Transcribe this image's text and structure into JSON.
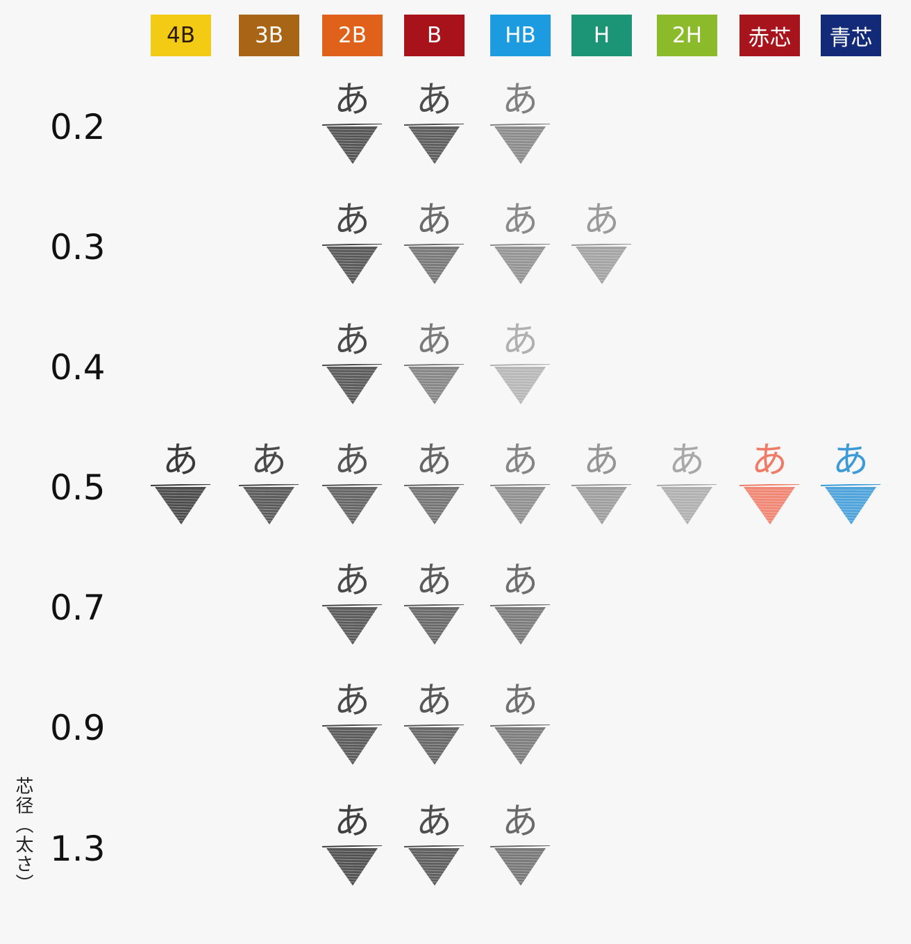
{
  "grades": [
    {
      "label": "4B",
      "color": "#f3cb14",
      "text_color": "#2a1a0a"
    },
    {
      "label": "3B",
      "color": "#a86515",
      "text_color": "#ffffff"
    },
    {
      "label": "2B",
      "color": "#e0621a",
      "text_color": "#ffffff"
    },
    {
      "label": "B",
      "color": "#a8121a",
      "text_color": "#ffffff"
    },
    {
      "label": "HB",
      "color": "#1d9be0",
      "text_color": "#ffffff"
    },
    {
      "label": "H",
      "color": "#1c9577",
      "text_color": "#ffffff"
    },
    {
      "label": "2H",
      "color": "#8bbb2b",
      "text_color": "#ffffff"
    },
    {
      "label": "赤芯",
      "color": "#a8141c",
      "text_color": "#ffffff"
    },
    {
      "label": "青芯",
      "color": "#122a78",
      "text_color": "#ffffff"
    }
  ],
  "axis_label": "芯径（太さ）",
  "sample_char": "あ",
  "rows": [
    {
      "label": "0.2",
      "samples": [
        {
          "grade": "2B",
          "color": "#444444"
        },
        {
          "grade": "B",
          "color": "#4d4d4d"
        },
        {
          "grade": "HB",
          "color": "#808080"
        }
      ]
    },
    {
      "label": "0.3",
      "samples": [
        {
          "grade": "2B",
          "color": "#484848"
        },
        {
          "grade": "B",
          "color": "#6a6a6a"
        },
        {
          "grade": "HB",
          "color": "#8a8a8a"
        },
        {
          "grade": "H",
          "color": "#9a9a9a"
        }
      ]
    },
    {
      "label": "0.4",
      "samples": [
        {
          "grade": "2B",
          "color": "#4a4a4a"
        },
        {
          "grade": "B",
          "color": "#7a7a7a"
        },
        {
          "grade": "HB",
          "color": "#b0b0b0"
        }
      ]
    },
    {
      "label": "0.5",
      "samples": [
        {
          "grade": "4B",
          "color": "#3a3a3a"
        },
        {
          "grade": "3B",
          "color": "#4a4a4a"
        },
        {
          "grade": "2B",
          "color": "#555555"
        },
        {
          "grade": "B",
          "color": "#666666"
        },
        {
          "grade": "HB",
          "color": "#858585"
        },
        {
          "grade": "H",
          "color": "#959595"
        },
        {
          "grade": "2H",
          "color": "#a8a8a8"
        },
        {
          "grade": "赤芯",
          "color": "#ef7a66"
        },
        {
          "grade": "青芯",
          "color": "#3d9ad8"
        }
      ]
    },
    {
      "label": "0.7",
      "samples": [
        {
          "grade": "2B",
          "color": "#4a4a4a"
        },
        {
          "grade": "B",
          "color": "#5a5a5a"
        },
        {
          "grade": "HB",
          "color": "#6e6e6e"
        }
      ]
    },
    {
      "label": "0.9",
      "samples": [
        {
          "grade": "2B",
          "color": "#4a4a4a"
        },
        {
          "grade": "B",
          "color": "#585858"
        },
        {
          "grade": "HB",
          "color": "#707070"
        }
      ]
    },
    {
      "label": "1.3",
      "samples": [
        {
          "grade": "2B",
          "color": "#404040"
        },
        {
          "grade": "B",
          "color": "#4e4e4e"
        },
        {
          "grade": "HB",
          "color": "#6a6a6a"
        }
      ]
    }
  ]
}
